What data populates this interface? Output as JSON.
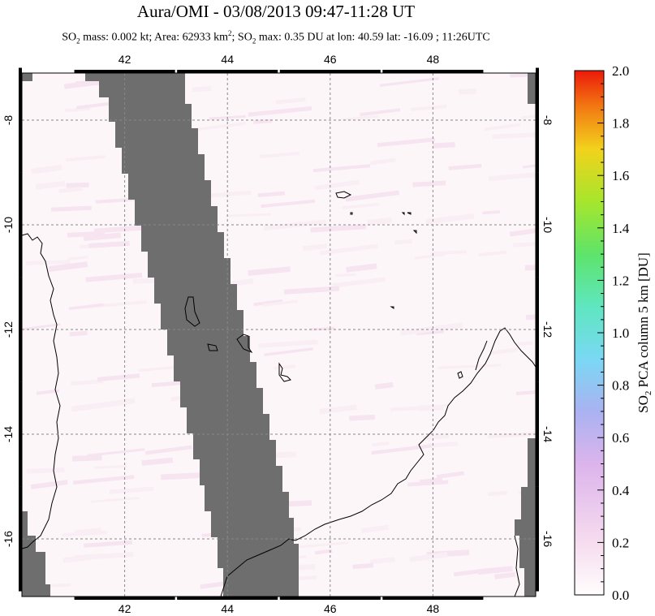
{
  "header": {
    "title": "Aura/OMI - 03/08/2013 09:47-11:28 UT",
    "subtitle_so2": "SO",
    "subtitle_sub": "2",
    "subtitle_mass": " mass: 0.002 kt; Area: 62933 km",
    "subtitle_sup": "2",
    "subtitle_so2b": "; SO",
    "subtitle_sub2": "2",
    "subtitle_rest": " max: 0.35 DU at lon: 40.59 lat: -16.09 ; 11:26UTC"
  },
  "chart_data": {
    "type": "heatmap",
    "title": "Aura/OMI - 03/08/2013 09:47-11:28 UT",
    "x_ticks": [
      "42",
      "44",
      "46",
      "48"
    ],
    "y_ticks": [
      "-8",
      "-10",
      "-12",
      "-14",
      "-16"
    ],
    "x_tick_values": [
      42,
      44,
      46,
      48
    ],
    "y_tick_values": [
      -8,
      -10,
      -12,
      -14,
      -16
    ],
    "xlim": [
      40.0,
      50.0
    ],
    "ylim": [
      -17.1,
      -7.1
    ],
    "grid": true,
    "colorbar": {
      "label": "SO2 PCA column 5 km [DU]",
      "label_main": "SO",
      "label_sub": "2",
      "label_rest": " PCA column 5 km [DU]",
      "ticks": [
        "0.0",
        "0.2",
        "0.4",
        "0.6",
        "0.8",
        "1.0",
        "1.2",
        "1.4",
        "1.6",
        "1.8",
        "2.0"
      ],
      "tick_values": [
        0.0,
        0.2,
        0.4,
        0.6,
        0.8,
        1.0,
        1.2,
        1.4,
        1.6,
        1.8,
        2.0
      ],
      "range": [
        0.0,
        2.0
      ]
    },
    "so2_max_du": 0.35,
    "so2_max_lon": 40.59,
    "so2_max_lat": -16.09,
    "no_data_color": "#6e6e6e",
    "background_color": "#fdf6f9"
  }
}
